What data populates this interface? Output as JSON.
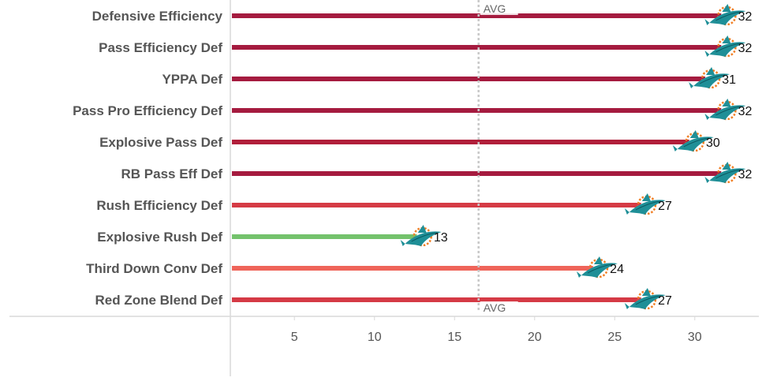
{
  "chart_data": {
    "type": "bar",
    "orientation": "horizontal",
    "categories": [
      "Defensive Efficiency",
      "Pass Efficiency Def",
      "YPPA Def",
      "Pass Pro Efficiency Def",
      "Explosive Pass Def",
      "RB Pass Eff Def",
      "Rush Efficiency Def",
      "Explosive Rush Def",
      "Third Down Conv Def",
      "Red Zone Blend Def"
    ],
    "values": [
      32,
      32,
      31,
      32,
      30,
      32,
      27,
      13,
      24,
      27
    ],
    "bar_colors": [
      "#a51b3f",
      "#a51b3f",
      "#a51b3f",
      "#a51b3f",
      "#b11f3a",
      "#a51b3f",
      "#d53a45",
      "#74c26c",
      "#ef645a",
      "#d53a45"
    ],
    "x_ticks": [
      5,
      10,
      15,
      20,
      25,
      30
    ],
    "xlim": [
      1,
      34
    ],
    "reference_line": {
      "label": "AVG",
      "value": 16.5
    },
    "marker_icon": "miami-dolphins-logo-icon",
    "xlabel": "",
    "ylabel": ""
  }
}
